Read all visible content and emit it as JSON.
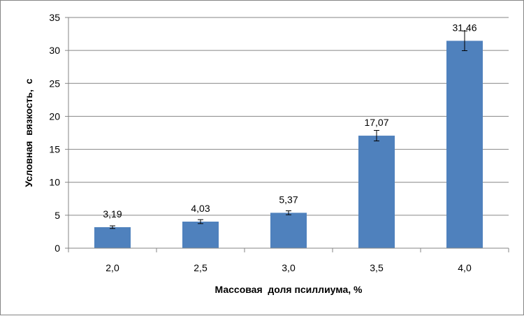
{
  "chart_data": {
    "type": "bar",
    "categories": [
      "2,0",
      "2,5",
      "3,0",
      "3,5",
      "4,0"
    ],
    "values": [
      3.19,
      4.03,
      5.37,
      17.07,
      31.46
    ],
    "value_labels": [
      "3,19",
      "4,03",
      "5,37",
      "17,07",
      "31,46"
    ],
    "error_bars": [
      0.2,
      0.3,
      0.3,
      0.8,
      1.5
    ],
    "xlabel": "Массовая  доля псиллиума, %",
    "ylabel": "Условная  вязкость,  с",
    "ylim": [
      0,
      35
    ],
    "yticks": [
      0,
      5,
      10,
      15,
      20,
      25,
      30,
      35
    ],
    "grid": true,
    "bar_color": "#4f81bd",
    "grid_color": "#868686"
  }
}
